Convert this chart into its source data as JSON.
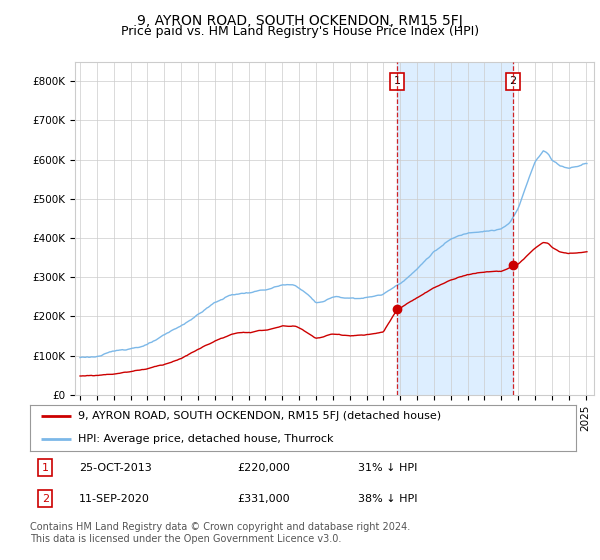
{
  "title": "9, AYRON ROAD, SOUTH OCKENDON, RM15 5FJ",
  "subtitle": "Price paid vs. HM Land Registry's House Price Index (HPI)",
  "legend_property": "9, AYRON ROAD, SOUTH OCKENDON, RM15 5FJ (detached house)",
  "legend_hpi": "HPI: Average price, detached house, Thurrock",
  "footnote": "Contains HM Land Registry data © Crown copyright and database right 2024.\nThis data is licensed under the Open Government Licence v3.0.",
  "point1_date": "25-OCT-2013",
  "point1_price": "£220,000",
  "point1_hpi_diff": "31% ↓ HPI",
  "point1_x": 2013.82,
  "point1_y": 220000,
  "point2_date": "11-SEP-2020",
  "point2_price": "£331,000",
  "point2_hpi_diff": "38% ↓ HPI",
  "point2_x": 2020.7,
  "point2_y": 331000,
  "ylabel_ticks": [
    0,
    100000,
    200000,
    300000,
    400000,
    500000,
    600000,
    700000,
    800000
  ],
  "ylabel_labels": [
    "£0",
    "£100K",
    "£200K",
    "£300K",
    "£400K",
    "£500K",
    "£600K",
    "£700K",
    "£800K"
  ],
  "ylim": [
    0,
    850000
  ],
  "xlim_start": 1994.7,
  "xlim_end": 2025.5,
  "hpi_color": "#7cb8e8",
  "property_color": "#cc0000",
  "dashed_line_color": "#cc0000",
  "shade_color": "#ddeeff",
  "grid_color": "#cccccc",
  "background_color": "#ffffff",
  "box_border_color": "#cc0000",
  "title_fontsize": 10,
  "subtitle_fontsize": 9,
  "axis_fontsize": 7.5,
  "legend_fontsize": 8,
  "footnote_fontsize": 7
}
